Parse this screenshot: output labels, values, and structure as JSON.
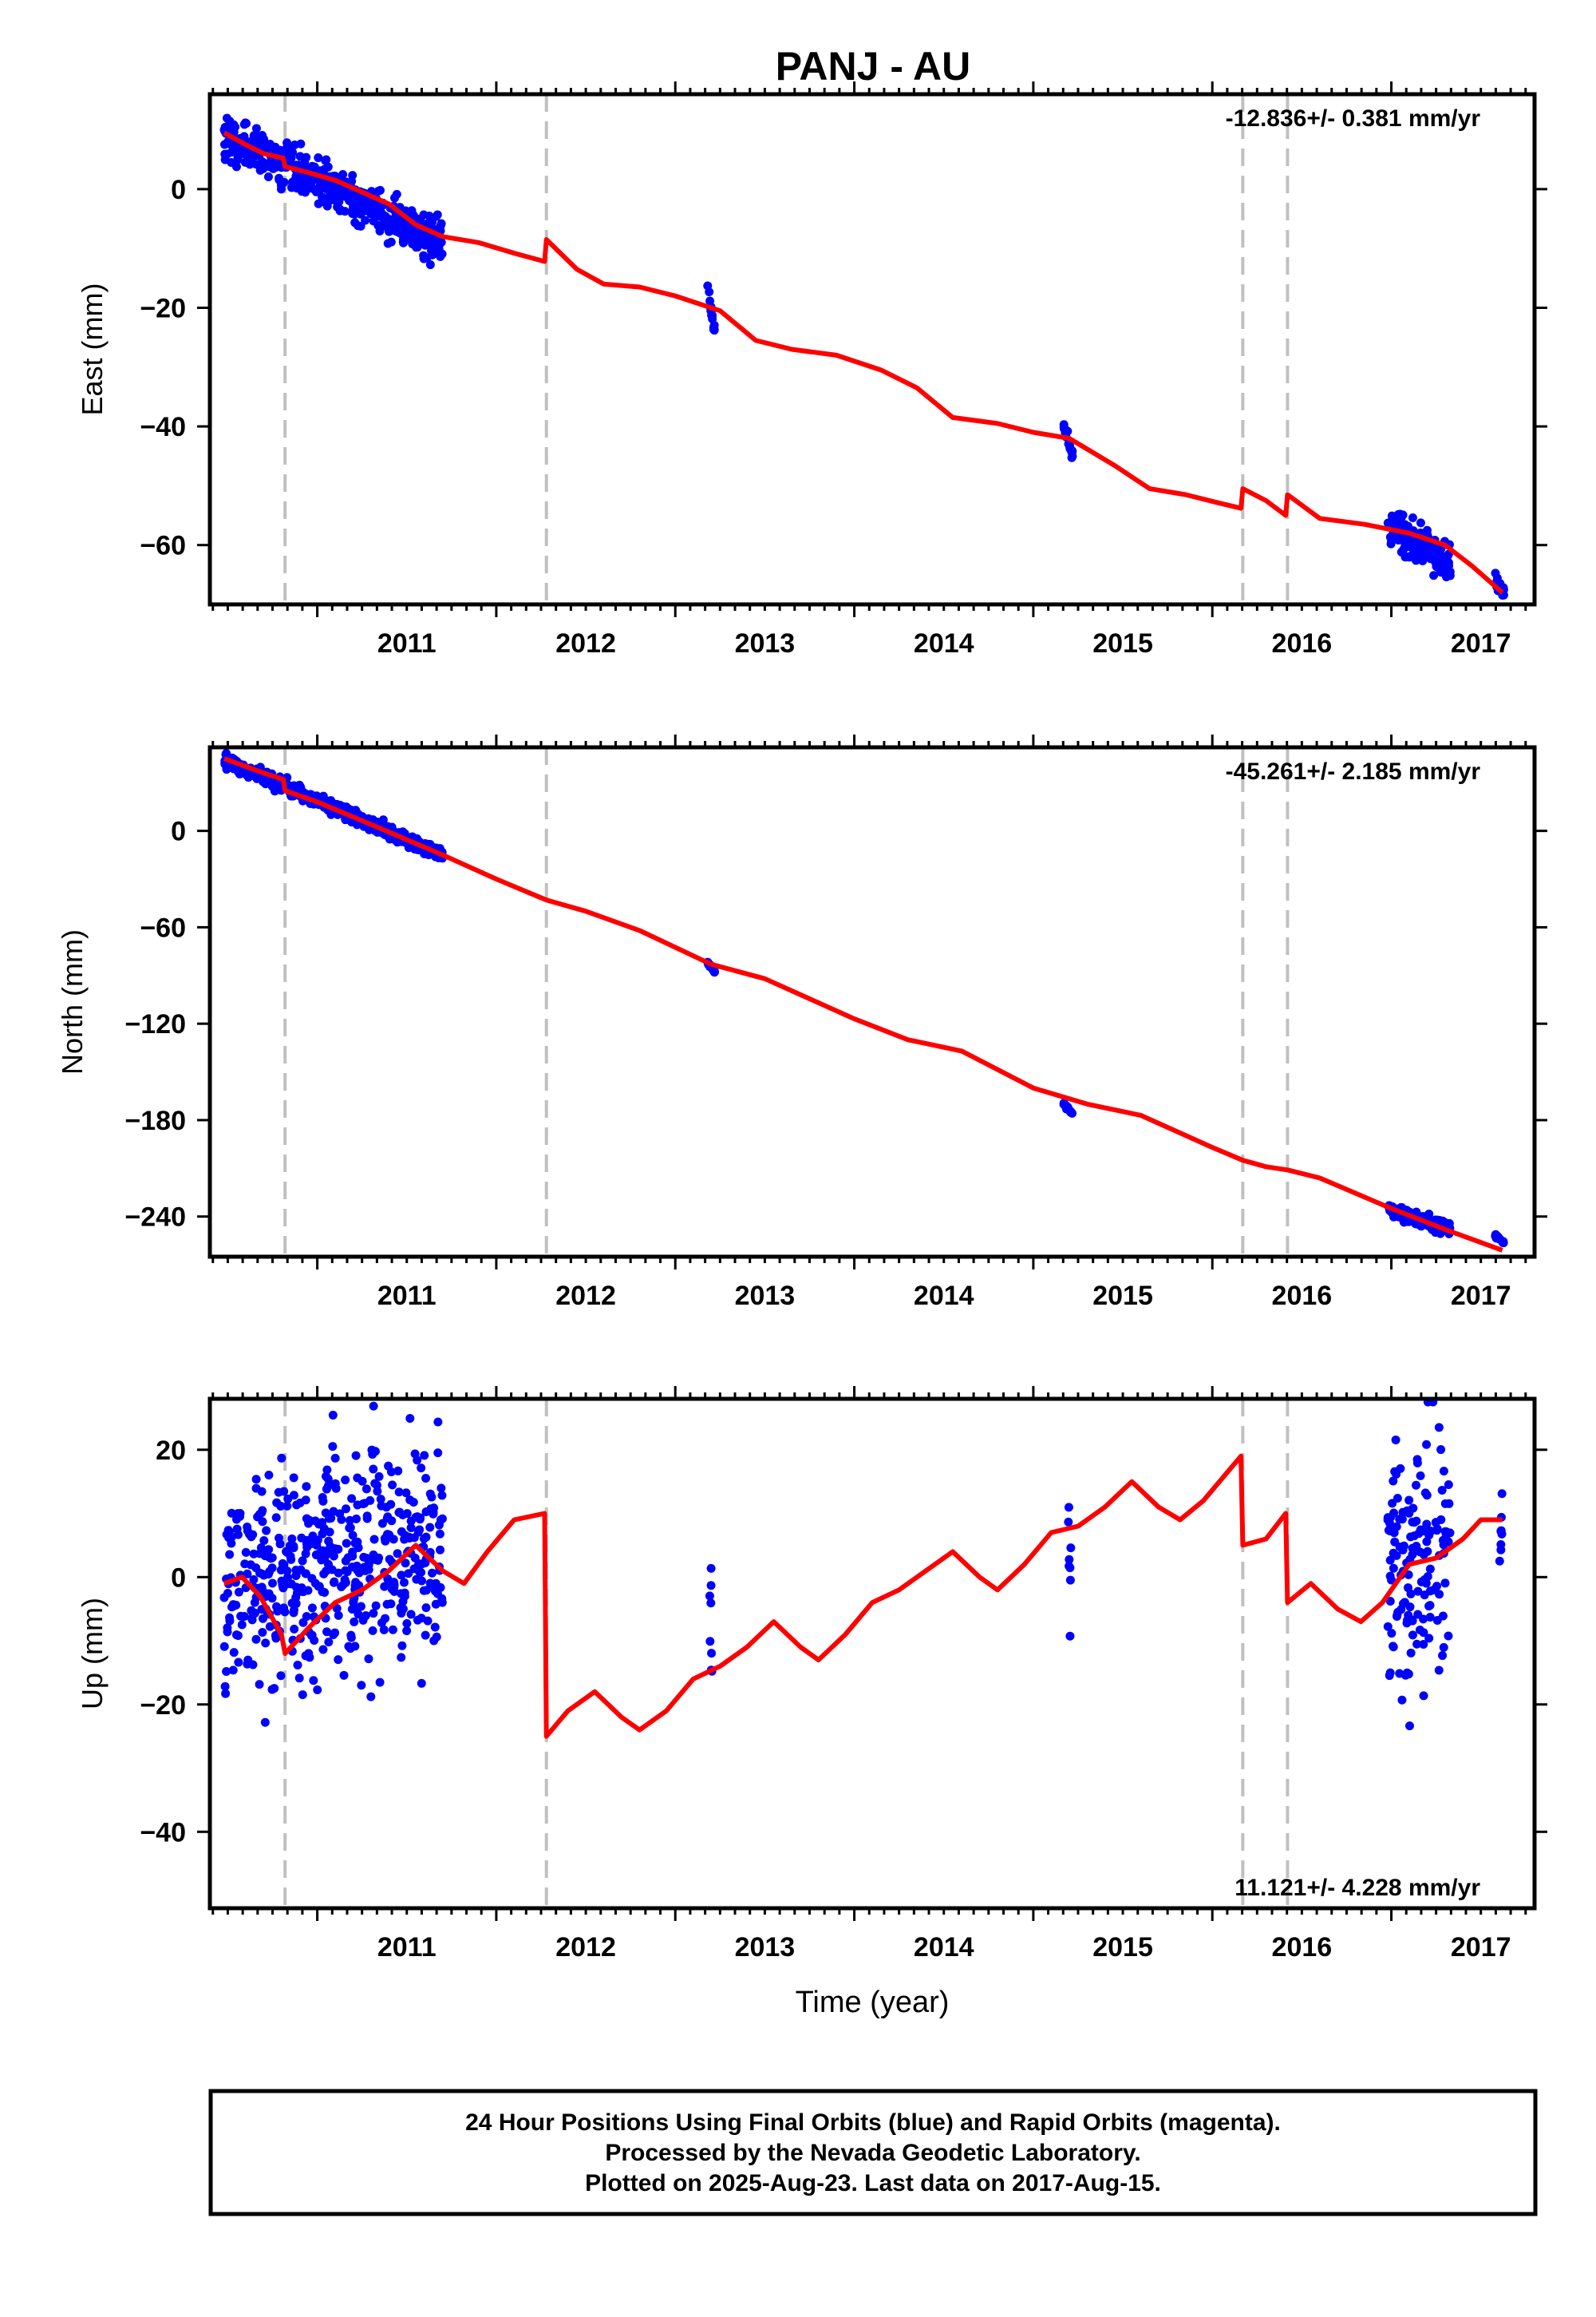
{
  "title": "PANJ - AU",
  "colors": {
    "data": "#0000ff",
    "model": "#ff0000",
    "offsets": "#c0c0c0",
    "frame": "#000000"
  },
  "footer": {
    "line1": "24 Hour Positions Using Final Orbits (blue) and Rapid Orbits (magenta).",
    "line2": "Processed by the Nevada Geodetic Laboratory.",
    "line3": "Plotted on 2025-Aug-23. Last data on 2017-Aug-15."
  },
  "chart_data": [
    {
      "type": "scatter",
      "ylabel": "East (mm)",
      "rate": "-12.836+/- 0.381 mm/yr",
      "rate_position": "top-right",
      "xlim": [
        2010.4,
        2017.8
      ],
      "ylim": [
        -70,
        16
      ],
      "yticks": [
        0,
        -20,
        -40,
        -60
      ],
      "xticks": [
        2011,
        2012,
        2013,
        2014,
        2015,
        2016,
        2017
      ],
      "offsets": [
        2010.82,
        2012.28,
        2016.17,
        2016.42
      ],
      "data_segments": [
        {
          "x_start": 2010.48,
          "x_end": 2011.7,
          "y_start": 9,
          "y_end": -9,
          "spread": 3.5
        },
        {
          "x_start": 2013.18,
          "x_end": 2013.22,
          "y_start": -17,
          "y_end": -24,
          "spread": 1
        },
        {
          "x_start": 2015.17,
          "x_end": 2015.22,
          "y_start": -40,
          "y_end": -45,
          "spread": 1
        },
        {
          "x_start": 2016.98,
          "x_end": 2017.33,
          "y_start": -57,
          "y_end": -63,
          "spread": 3
        },
        {
          "x_start": 2017.58,
          "x_end": 2017.63,
          "y_start": -66,
          "y_end": -68,
          "spread": 1
        }
      ],
      "model_line": {
        "x": [
          2010.48,
          2010.6,
          2010.7,
          2010.81,
          2010.82,
          2010.95,
          2011.1,
          2011.25,
          2011.4,
          2011.55,
          2011.7,
          2011.9,
          2012.1,
          2012.27,
          2012.28,
          2012.45,
          2012.6,
          2012.8,
          2013.0,
          2013.25,
          2013.45,
          2013.65,
          2013.9,
          2014.15,
          2014.35,
          2014.55,
          2014.8,
          2015.0,
          2015.2,
          2015.45,
          2015.65,
          2015.85,
          2016.05,
          2016.16,
          2016.17,
          2016.3,
          2016.41,
          2016.42,
          2016.6,
          2016.85,
          2017.1,
          2017.3,
          2017.45,
          2017.62
        ],
        "y": [
          9.5,
          7.5,
          6.0,
          5.2,
          3.8,
          2.8,
          1.5,
          -0.5,
          -2.5,
          -6.0,
          -8.0,
          -9.0,
          -10.8,
          -12.2,
          -8.5,
          -13.5,
          -16.0,
          -16.5,
          -18.0,
          -20.5,
          -25.5,
          -27.0,
          -28.0,
          -30.5,
          -33.5,
          -38.5,
          -39.5,
          -41.0,
          -42.0,
          -46.5,
          -50.5,
          -51.5,
          -53.0,
          -53.8,
          -50.5,
          -52.5,
          -55.0,
          -51.5,
          -55.5,
          -56.5,
          -58.0,
          -60.0,
          -63.5,
          -68.0
        ]
      }
    },
    {
      "type": "scatter",
      "ylabel": "North (mm)",
      "rate": "-45.261+/- 2.185 mm/yr",
      "rate_position": "top-right",
      "xlim": [
        2010.4,
        2017.8
      ],
      "ylim": [
        -265,
        52
      ],
      "yticks": [
        0,
        -60,
        -120,
        -180,
        -240
      ],
      "xticks": [
        2011,
        2012,
        2013,
        2014,
        2015,
        2016,
        2017
      ],
      "offsets": [
        2010.82,
        2012.28,
        2016.17,
        2016.42
      ],
      "data_segments": [
        {
          "x_start": 2010.48,
          "x_end": 2011.7,
          "y_start": 44,
          "y_end": -15,
          "spread": 4
        },
        {
          "x_start": 2013.18,
          "x_end": 2013.22,
          "y_start": -82,
          "y_end": -88,
          "spread": 1
        },
        {
          "x_start": 2015.17,
          "x_end": 2015.22,
          "y_start": -170,
          "y_end": -176,
          "spread": 1
        },
        {
          "x_start": 2016.98,
          "x_end": 2017.33,
          "y_start": -235,
          "y_end": -248,
          "spread": 4
        },
        {
          "x_start": 2017.58,
          "x_end": 2017.63,
          "y_start": -252,
          "y_end": -256,
          "spread": 1
        }
      ],
      "model_line": {
        "x": [
          2010.48,
          2010.7,
          2010.81,
          2010.82,
          2011.0,
          2011.3,
          2011.7,
          2012.0,
          2012.28,
          2012.5,
          2012.8,
          2013.2,
          2013.5,
          2014.0,
          2014.3,
          2014.6,
          2015.0,
          2015.3,
          2015.6,
          2016.0,
          2016.17,
          2016.3,
          2016.42,
          2016.6,
          2017.0,
          2017.3,
          2017.62
        ],
        "y": [
          45,
          36,
          32,
          25,
          18,
          4,
          -15,
          -30,
          -43,
          -50,
          -62,
          -83,
          -92,
          -117,
          -130,
          -137,
          -160,
          -170,
          -177,
          -197,
          -205,
          -209,
          -211,
          -216,
          -235,
          -248,
          -261
        ]
      }
    },
    {
      "type": "scatter",
      "ylabel": "Up (mm)",
      "xlabel": "Time (year)",
      "rate": "11.121+/- 4.228 mm/yr",
      "rate_position": "bottom-right",
      "xlim": [
        2010.4,
        2017.8
      ],
      "ylim": [
        -52,
        28
      ],
      "yticks": [
        20,
        0,
        -20,
        -40
      ],
      "xticks": [
        2011,
        2012,
        2013,
        2014,
        2015,
        2016,
        2017
      ],
      "offsets": [
        2010.82,
        2012.28,
        2016.17,
        2016.42
      ],
      "data_segments": [
        {
          "x_start": 2010.48,
          "x_end": 2011.7,
          "y_start": -2,
          "y_end": 5,
          "spread": 16
        },
        {
          "x_start": 2013.19,
          "x_end": 2013.21,
          "y_start": -12,
          "y_end": -8,
          "spread": 12
        },
        {
          "x_start": 2015.19,
          "x_end": 2015.21,
          "y_start": 2,
          "y_end": 3,
          "spread": 12
        },
        {
          "x_start": 2016.98,
          "x_end": 2017.33,
          "y_start": 0,
          "y_end": 5,
          "spread": 18
        },
        {
          "x_start": 2017.6,
          "x_end": 2017.62,
          "y_start": 6,
          "y_end": 9,
          "spread": 5
        }
      ],
      "model_line": {
        "x": [
          2010.48,
          2010.58,
          2010.68,
          2010.8,
          2010.82,
          2010.95,
          2011.1,
          2011.25,
          2011.4,
          2011.55,
          2011.7,
          2011.82,
          2011.95,
          2012.1,
          2012.27,
          2012.28,
          2012.4,
          2012.55,
          2012.7,
          2012.8,
          2012.95,
          2013.1,
          2013.25,
          2013.4,
          2013.55,
          2013.7,
          2013.8,
          2013.95,
          2014.1,
          2014.25,
          2014.4,
          2014.55,
          2014.7,
          2014.8,
          2014.95,
          2015.1,
          2015.25,
          2015.4,
          2015.55,
          2015.7,
          2015.82,
          2015.95,
          2016.1,
          2016.16,
          2016.17,
          2016.3,
          2016.41,
          2016.42,
          2016.55,
          2016.7,
          2016.83,
          2016.95,
          2017.1,
          2017.25,
          2017.4,
          2017.5,
          2017.62
        ],
        "y": [
          -1,
          0,
          -3,
          -9,
          -12,
          -8,
          -4,
          -2,
          1,
          5,
          1,
          -1,
          4,
          9,
          10,
          -25,
          -21,
          -18,
          -22,
          -24,
          -21,
          -16,
          -14,
          -11,
          -7,
          -11,
          -13,
          -9,
          -4,
          -2,
          1,
          4,
          0,
          -2,
          2,
          7,
          8,
          11,
          15,
          11,
          9,
          12,
          17,
          19,
          5,
          6,
          10,
          -4,
          -1,
          -5,
          -7,
          -4,
          2,
          3,
          6,
          9,
          9
        ]
      }
    }
  ]
}
